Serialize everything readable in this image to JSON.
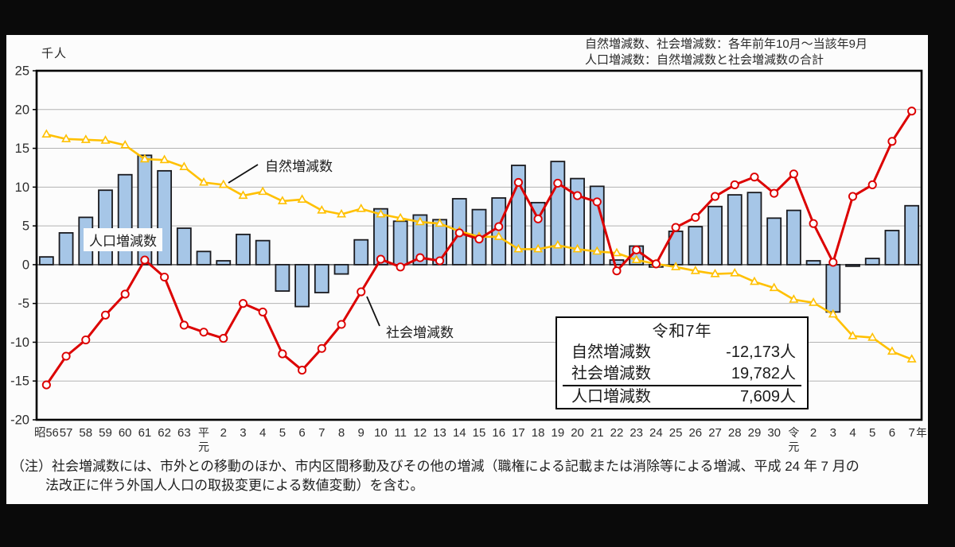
{
  "header": {
    "note_line1": "自然増減数、社会増減数：各年前年10月～当該年9月",
    "note_line2": "人口増減数：自然増減数と社会増減数の合計"
  },
  "annotation_box": {
    "title": "令和7年",
    "rows": [
      {
        "label": "自然増減数",
        "value": "-12,173人"
      },
      {
        "label": "社会増減数",
        "value": "19,782人"
      },
      {
        "label": "人口増減数",
        "value": "7,609人"
      }
    ]
  },
  "footnote": {
    "line1": "（注）社会増減数には、市外との移動のほか、市内区間移動及びその他の増減（職権による記載または消除等による増減、平成 24 年 7 月の",
    "line2": "法改正に伴う外国人人口の取扱変更による数値変動）を含む。"
  },
  "chart_data": {
    "type": "bar",
    "unit": "千人",
    "ylabel": "千人",
    "xlabel": "年",
    "axis_suffix": "年",
    "ylim": [
      -20,
      25
    ],
    "ytick_step": 5,
    "grid": true,
    "legend_position": "callout-labels-on-plot",
    "categories": [
      "昭56",
      "57",
      "58",
      "59",
      "60",
      "61",
      "62",
      "63",
      "平元",
      "2",
      "3",
      "4",
      "5",
      "6",
      "7",
      "8",
      "9",
      "10",
      "11",
      "12",
      "13",
      "14",
      "15",
      "16",
      "17",
      "18",
      "19",
      "20",
      "21",
      "22",
      "23",
      "24",
      "25",
      "26",
      "27",
      "28",
      "29",
      "30",
      "令元",
      "2",
      "3",
      "4",
      "5",
      "6",
      "7"
    ],
    "series": [
      {
        "name": "人口増減数",
        "type": "bar",
        "color": "#A6C6E7",
        "border_color": "#1a1a1e",
        "values": [
          1.0,
          4.1,
          6.1,
          9.6,
          11.6,
          14.1,
          12.1,
          4.7,
          1.7,
          0.5,
          3.9,
          3.1,
          -3.4,
          -5.4,
          -3.6,
          -1.2,
          3.2,
          7.2,
          5.6,
          6.4,
          5.8,
          8.5,
          7.1,
          8.6,
          12.8,
          8.0,
          13.3,
          11.1,
          10.1,
          0.6,
          2.4,
          -0.3,
          4.3,
          4.9,
          7.5,
          9.0,
          9.3,
          6.0,
          7.0,
          0.5,
          -6.1,
          -0.2,
          0.8,
          4.4,
          7.6
        ]
      },
      {
        "name": "自然増減数",
        "type": "line",
        "color": "#FFC000",
        "marker": "triangle",
        "values": [
          16.8,
          16.2,
          16.1,
          16.0,
          15.4,
          13.6,
          13.5,
          12.6,
          10.6,
          10.3,
          8.9,
          9.4,
          8.2,
          8.4,
          7.0,
          6.5,
          7.2,
          6.5,
          6.0,
          5.5,
          5.3,
          4.3,
          3.6,
          3.6,
          2.0,
          2.0,
          2.5,
          2.0,
          1.7,
          1.5,
          0.6,
          0.1,
          -0.3,
          -0.8,
          -1.2,
          -1.1,
          -2.2,
          -3.0,
          -4.5,
          -4.9,
          -6.4,
          -9.2,
          -9.4,
          -11.2,
          -12.2
        ]
      },
      {
        "name": "社会増減数",
        "type": "line",
        "color": "#DC0000",
        "marker": "circle",
        "values": [
          -15.5,
          -11.8,
          -9.7,
          -6.5,
          -3.8,
          0.6,
          -1.6,
          -7.8,
          -8.7,
          -9.5,
          -5.0,
          -6.1,
          -11.5,
          -13.6,
          -10.8,
          -7.7,
          -3.5,
          0.7,
          -0.3,
          0.9,
          0.5,
          4.1,
          3.3,
          4.9,
          10.6,
          5.9,
          10.5,
          8.9,
          8.1,
          -0.8,
          1.9,
          0.1,
          4.8,
          6.1,
          8.8,
          10.3,
          11.3,
          9.2,
          11.7,
          5.3,
          0.3,
          8.8,
          10.3,
          15.9,
          19.8
        ]
      }
    ]
  }
}
